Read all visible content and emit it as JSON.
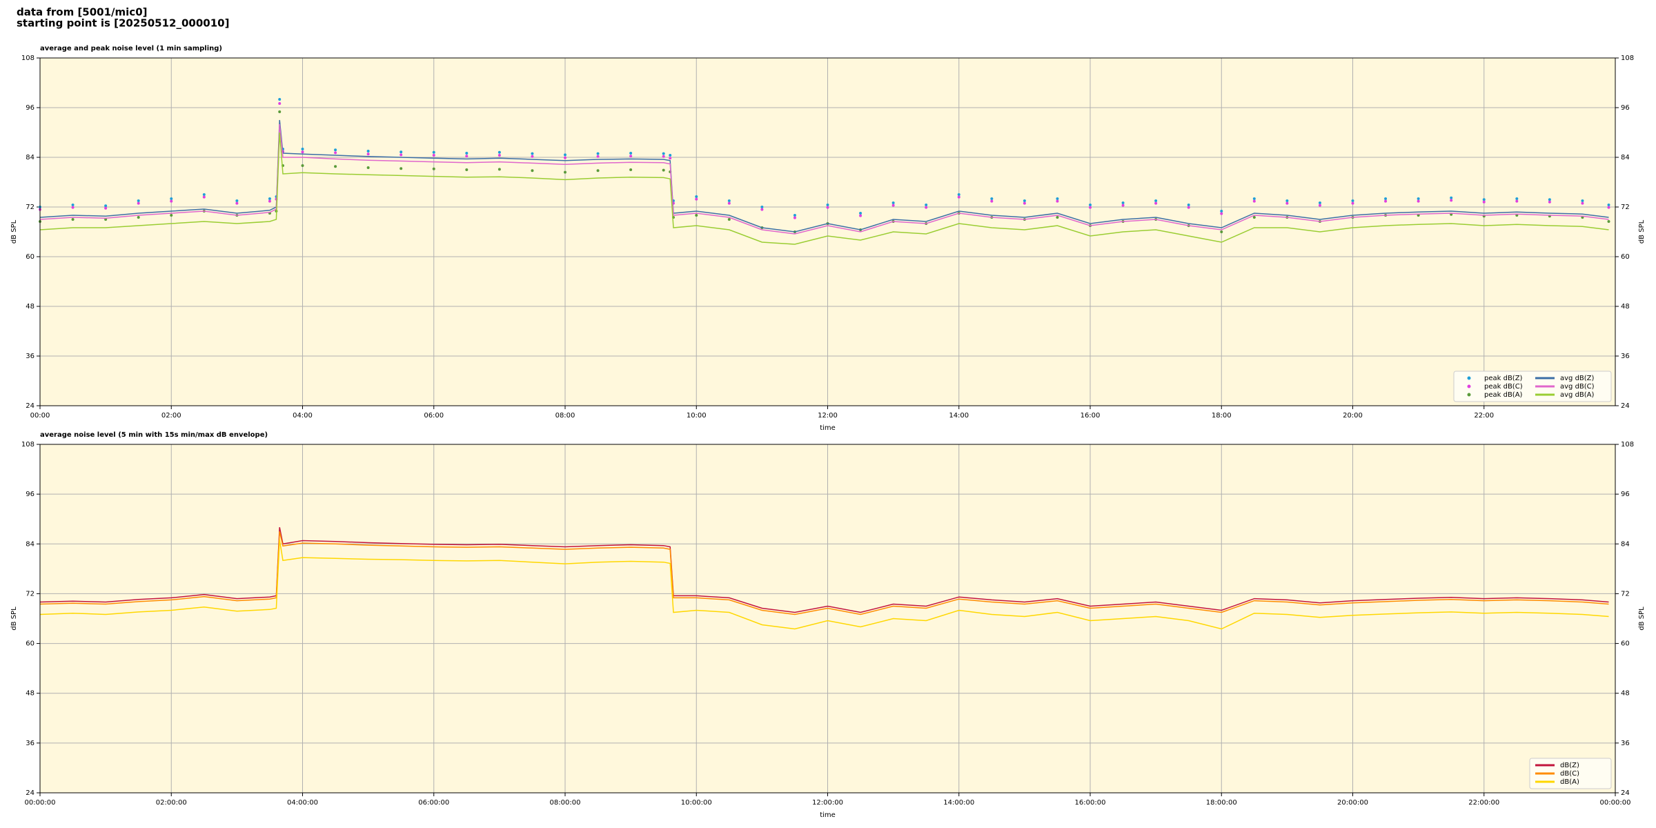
{
  "header": {
    "source": "data from [5001/mic0]",
    "start": "starting point is [20250512_000010]"
  },
  "chart_data": [
    {
      "type": "line",
      "title": "average and peak noise level (1 min sampling)",
      "xlabel": "time",
      "ylabel": "dB SPL",
      "xlim": [
        0,
        24
      ],
      "ylim": [
        24,
        108
      ],
      "yticks": [
        24,
        36,
        48,
        60,
        72,
        84,
        96,
        108
      ],
      "xticks": [
        {
          "value": 0,
          "label": "00:00"
        },
        {
          "value": 2,
          "label": "02:00"
        },
        {
          "value": 4,
          "label": "04:00"
        },
        {
          "value": 6,
          "label": "06:00"
        },
        {
          "value": 8,
          "label": "08:00"
        },
        {
          "value": 10,
          "label": "10:00"
        },
        {
          "value": 12,
          "label": "12:00"
        },
        {
          "value": 14,
          "label": "14:00"
        },
        {
          "value": 16,
          "label": "16:00"
        },
        {
          "value": 18,
          "label": "18:00"
        },
        {
          "value": 20,
          "label": "20:00"
        },
        {
          "value": 22,
          "label": "22:00"
        }
      ],
      "grid": true,
      "legend": "lower right",
      "legend_columns": 2,
      "background": "#fff8dc",
      "x": [
        0,
        0.5,
        1,
        1.5,
        2,
        2.5,
        3,
        3.5,
        3.6,
        3.65,
        3.7,
        4,
        4.5,
        5,
        5.5,
        6,
        6.5,
        7,
        7.5,
        8,
        8.5,
        9,
        9.5,
        9.6,
        9.65,
        10,
        10.5,
        11,
        11.5,
        12,
        12.5,
        13,
        13.5,
        14,
        14.5,
        15,
        15.5,
        16,
        16.5,
        17,
        17.5,
        18,
        18.5,
        19,
        19.5,
        20,
        20.5,
        21,
        21.5,
        22,
        22.5,
        23,
        23.5,
        23.9
      ],
      "series": [
        {
          "name": "peak dB(Z)",
          "kind": "scatter",
          "color": "#1f9fd8",
          "values": [
            72,
            72.5,
            72.3,
            73.5,
            74,
            75,
            73.5,
            74,
            74.5,
            98,
            86,
            86,
            85.8,
            85.5,
            85.3,
            85.2,
            85,
            85.2,
            84.9,
            84.6,
            84.9,
            85,
            84.9,
            84.5,
            73.5,
            74.5,
            73.5,
            72,
            70,
            72.5,
            70.5,
            73,
            72.5,
            75,
            74,
            73.5,
            74,
            72.5,
            73,
            73.5,
            72.5,
            71,
            74,
            73.5,
            73,
            73.5,
            74,
            74,
            74.2,
            73.8,
            74,
            73.8,
            73.5,
            72.5
          ]
        },
        {
          "name": "peak dB(C)",
          "kind": "scatter",
          "color": "#e040e0",
          "values": [
            71.4,
            71.9,
            71.7,
            72.9,
            73.4,
            74.4,
            72.9,
            73.4,
            73.9,
            97,
            85.4,
            85.3,
            85.1,
            84.8,
            84.6,
            84.5,
            84.3,
            84.5,
            84.2,
            83.9,
            84.2,
            84.3,
            84.2,
            83.8,
            72.9,
            73.9,
            72.9,
            71.4,
            69.4,
            71.9,
            69.9,
            72.4,
            71.9,
            74.4,
            73.4,
            72.9,
            73.4,
            71.9,
            72.4,
            72.9,
            71.9,
            70.4,
            73.4,
            72.9,
            72.4,
            72.9,
            73.4,
            73.4,
            73.6,
            73.2,
            73.4,
            73.2,
            72.9,
            71.9
          ]
        },
        {
          "name": "peak dB(A)",
          "kind": "scatter",
          "color": "#5a9a3a",
          "values": [
            68.5,
            69,
            69,
            69.5,
            70,
            71,
            70,
            70.5,
            71,
            95,
            82,
            82,
            81.8,
            81.5,
            81.3,
            81.2,
            81,
            81.1,
            80.8,
            80.4,
            80.8,
            81,
            80.9,
            80.5,
            69.5,
            70,
            69,
            67,
            66,
            68,
            66.5,
            68.5,
            68,
            70.5,
            69.5,
            69,
            69.5,
            67.5,
            68.5,
            69,
            67.5,
            66,
            69.5,
            69.5,
            68.5,
            69.5,
            70,
            70,
            70.2,
            69.8,
            70,
            69.8,
            69.5,
            68.5
          ]
        },
        {
          "name": "avg dB(Z)",
          "kind": "line",
          "color": "#3b6ea5",
          "values": [
            69.5,
            70,
            69.8,
            70.5,
            71,
            71.5,
            70.5,
            71.2,
            72,
            93,
            85,
            84.8,
            84.5,
            84.2,
            84,
            83.8,
            83.6,
            83.8,
            83.5,
            83.2,
            83.5,
            83.6,
            83.5,
            83.2,
            70.5,
            71,
            70,
            67,
            66,
            68,
            66.5,
            69,
            68.5,
            71,
            70,
            69.5,
            70.5,
            68,
            69,
            69.5,
            68,
            67,
            70.5,
            70,
            69,
            70,
            70.5,
            70.8,
            71,
            70.5,
            70.8,
            70.5,
            70.3,
            69.5
          ]
        },
        {
          "name": "avg dB(C)",
          "kind": "line",
          "color": "#e066cc",
          "values": [
            69,
            69.5,
            69.3,
            70,
            70.5,
            71,
            70,
            70.7,
            71.5,
            92,
            84,
            84,
            83.6,
            83.3,
            83.1,
            82.9,
            82.7,
            82.9,
            82.6,
            82.3,
            82.6,
            82.8,
            82.7,
            82.4,
            70,
            70.5,
            69.5,
            66.5,
            65.5,
            67.5,
            66,
            68.5,
            68,
            70.5,
            69.5,
            69,
            70,
            67.5,
            68.5,
            69,
            67.5,
            66.5,
            70,
            69.5,
            68.5,
            69.5,
            70,
            70.3,
            70.5,
            70,
            70.3,
            70,
            69.8,
            69
          ]
        },
        {
          "name": "avg dB(A)",
          "kind": "line",
          "color": "#9acd32",
          "values": [
            66.5,
            67,
            67,
            67.5,
            68,
            68.5,
            68,
            68.5,
            69,
            90,
            80,
            80.3,
            80,
            79.8,
            79.6,
            79.4,
            79.2,
            79.3,
            79,
            78.6,
            79,
            79.2,
            79.1,
            78.8,
            67,
            67.5,
            66.5,
            63.5,
            63,
            65,
            64,
            66,
            65.5,
            68,
            67,
            66.5,
            67.5,
            65,
            66,
            66.5,
            65,
            63.5,
            67,
            67,
            66,
            67,
            67.5,
            67.8,
            68,
            67.5,
            67.8,
            67.5,
            67.3,
            66.5
          ]
        }
      ]
    },
    {
      "type": "line",
      "title": "average noise level (5 min with 15s min/max dB envelope)",
      "xlabel": "time",
      "ylabel": "dB SPL",
      "xlim": [
        0,
        24
      ],
      "ylim": [
        24,
        108
      ],
      "yticks": [
        24,
        36,
        48,
        60,
        72,
        84,
        96,
        108
      ],
      "xticks": [
        {
          "value": 0,
          "label": "00:00:00"
        },
        {
          "value": 2,
          "label": "02:00:00"
        },
        {
          "value": 4,
          "label": "04:00:00"
        },
        {
          "value": 6,
          "label": "06:00:00"
        },
        {
          "value": 8,
          "label": "08:00:00"
        },
        {
          "value": 10,
          "label": "10:00:00"
        },
        {
          "value": 12,
          "label": "12:00:00"
        },
        {
          "value": 14,
          "label": "14:00:00"
        },
        {
          "value": 16,
          "label": "16:00:00"
        },
        {
          "value": 18,
          "label": "18:00:00"
        },
        {
          "value": 20,
          "label": "20:00:00"
        },
        {
          "value": 22,
          "label": "22:00:00"
        },
        {
          "value": 24,
          "label": "00:00:00"
        }
      ],
      "grid": true,
      "legend": "lower right",
      "legend_columns": 1,
      "background": "#fff8dc",
      "x": [
        0,
        0.5,
        1,
        1.5,
        2,
        2.5,
        3,
        3.5,
        3.6,
        3.65,
        3.7,
        4,
        4.5,
        5,
        5.5,
        6,
        6.5,
        7,
        7.5,
        8,
        8.5,
        9,
        9.5,
        9.6,
        9.65,
        10,
        10.5,
        11,
        11.5,
        12,
        12.5,
        13,
        13.5,
        14,
        14.5,
        15,
        15.5,
        16,
        16.5,
        17,
        17.5,
        18,
        18.5,
        19,
        19.5,
        20,
        20.5,
        21,
        21.5,
        22,
        22.5,
        23,
        23.5,
        23.9
      ],
      "series": [
        {
          "name": "dB(Z)",
          "kind": "line",
          "color": "#c2143c",
          "values": [
            70,
            70.2,
            70,
            70.6,
            71,
            71.8,
            70.8,
            71.2,
            71.5,
            88,
            84,
            84.8,
            84.6,
            84.3,
            84.1,
            83.9,
            83.8,
            83.9,
            83.6,
            83.3,
            83.6,
            83.8,
            83.6,
            83.3,
            71.5,
            71.5,
            71,
            68.5,
            67.5,
            69,
            67.5,
            69.5,
            69,
            71.2,
            70.5,
            70,
            70.8,
            69,
            69.5,
            70,
            69,
            68,
            70.8,
            70.5,
            69.8,
            70.3,
            70.6,
            70.9,
            71.1,
            70.8,
            71,
            70.8,
            70.5,
            70
          ]
        },
        {
          "name": "dB(C)",
          "kind": "line",
          "color": "#ff8c00",
          "values": [
            69.5,
            69.7,
            69.5,
            70.1,
            70.5,
            71.3,
            70.3,
            70.7,
            71,
            87,
            83.5,
            84.2,
            84,
            83.7,
            83.5,
            83.3,
            83.2,
            83.3,
            83,
            82.7,
            83,
            83.2,
            83,
            82.7,
            71,
            71,
            70.5,
            68,
            67,
            68.5,
            67,
            69,
            68.5,
            70.7,
            70,
            69.5,
            70.3,
            68.5,
            69,
            69.5,
            68.5,
            67.5,
            70.3,
            70,
            69.3,
            69.8,
            70.1,
            70.4,
            70.6,
            70.3,
            70.5,
            70.3,
            70,
            69.5
          ]
        },
        {
          "name": "dB(A)",
          "kind": "line",
          "color": "#ffd700",
          "values": [
            67,
            67.3,
            67,
            67.6,
            68,
            68.8,
            67.8,
            68.2,
            68.5,
            85,
            80,
            80.7,
            80.5,
            80.3,
            80.2,
            80,
            79.9,
            80,
            79.6,
            79.2,
            79.6,
            79.8,
            79.6,
            79.3,
            67.5,
            68,
            67.5,
            64.5,
            63.5,
            65.5,
            64,
            66,
            65.5,
            68,
            67,
            66.5,
            67.5,
            65.5,
            66,
            66.5,
            65.5,
            63.5,
            67.3,
            67,
            66.3,
            66.8,
            67.1,
            67.4,
            67.6,
            67.3,
            67.5,
            67.3,
            67,
            66.5
          ]
        }
      ]
    }
  ]
}
